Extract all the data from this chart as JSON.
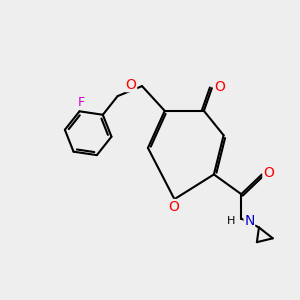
{
  "bg_color": "#eeeeee",
  "bond_color": "#000000",
  "bond_width": 1.5,
  "atom_colors": {
    "O": "#ff0000",
    "N": "#0000cc",
    "F": "#cc00cc",
    "C": "#000000"
  },
  "font_size": 9
}
